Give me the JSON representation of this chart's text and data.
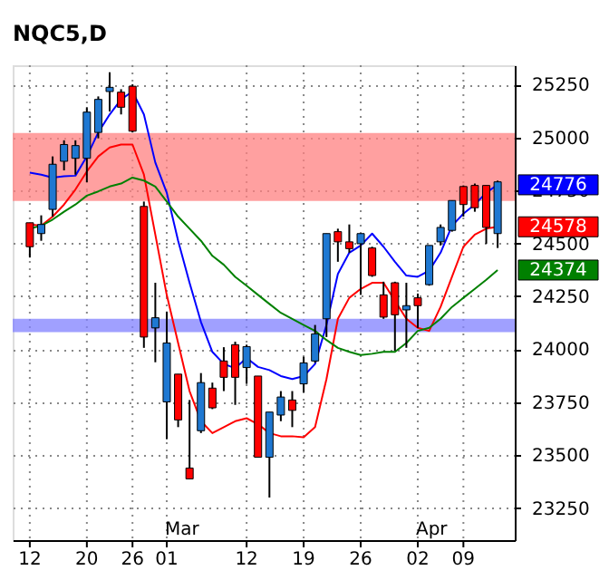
{
  "chart_data": {
    "type": "candlestick",
    "title": "NQC5,D",
    "categories": [
      "12",
      null,
      null,
      null,
      null,
      "20",
      null,
      null,
      null,
      "26",
      null,
      null,
      "01",
      null,
      null,
      null,
      null,
      null,
      null,
      "12",
      null,
      null,
      null,
      null,
      "19",
      null,
      null,
      null,
      null,
      "26",
      null,
      null,
      null,
      null,
      "02",
      null,
      null,
      null,
      "09",
      null,
      null,
      null
    ],
    "ohlc": [
      [
        24597,
        24597,
        24433,
        24484
      ],
      [
        24546,
        24632,
        24512,
        24589
      ],
      [
        24660,
        24910,
        24626,
        24873
      ],
      [
        24887,
        24986,
        24844,
        24966
      ],
      [
        24901,
        24986,
        24824,
        24961
      ],
      [
        24901,
        25142,
        24788,
        25119
      ],
      [
        25023,
        25193,
        24995,
        25179
      ],
      [
        25216,
        25307,
        25122,
        25236
      ],
      [
        25213,
        25227,
        25108,
        25142
      ],
      [
        25241,
        25250,
        25023,
        25029
      ],
      [
        24674,
        24697,
        24007,
        24058
      ],
      [
        24101,
        24314,
        23939,
        24149
      ],
      [
        23752,
        24178,
        23576,
        24030
      ],
      [
        23883,
        23883,
        23633,
        23667
      ],
      [
        23440,
        23761,
        23389,
        23389
      ],
      [
        23616,
        23888,
        23605,
        23843
      ],
      [
        23817,
        23843,
        23718,
        23724
      ],
      [
        23945,
        24010,
        23803,
        23868
      ],
      [
        24022,
        24036,
        23738,
        23868
      ],
      [
        23914,
        24022,
        23837,
        24013
      ],
      [
        23874,
        23874,
        23491,
        23491
      ],
      [
        23491,
        23704,
        23301,
        23704
      ],
      [
        23690,
        23803,
        23661,
        23775
      ],
      [
        23761,
        23803,
        23633,
        23712
      ],
      [
        23837,
        23965,
        23797,
        23936
      ],
      [
        23945,
        24115,
        23936,
        24073
      ],
      [
        24144,
        24546,
        24058,
        24546
      ],
      [
        24555,
        24569,
        24413,
        24507
      ],
      [
        24507,
        24589,
        24456,
        24475
      ],
      [
        24498,
        24546,
        24257,
        24546
      ],
      [
        24478,
        24484,
        24342,
        24348
      ],
      [
        24257,
        24319,
        24144,
        24152
      ],
      [
        24314,
        24319,
        23993,
        24163
      ],
      [
        24186,
        24314,
        24007,
        24206
      ],
      [
        24243,
        24263,
        24101,
        24206
      ],
      [
        24305,
        24490,
        24300,
        24490
      ],
      [
        24507,
        24589,
        24490,
        24575
      ],
      [
        24561,
        24702,
        24555,
        24702
      ],
      [
        24768,
        24773,
        24626,
        24683
      ],
      [
        24773,
        24782,
        24649,
        24668
      ],
      [
        24773,
        24773,
        24498,
        24575
      ],
      [
        24546,
        24796,
        24478,
        24790
      ]
    ],
    "colors": [
      "#ff0000",
      "#1e78d2",
      "#1e78d2",
      "#1e78d2",
      "#1e78d2",
      "#1e78d2",
      "#1e78d2",
      "#1e78d2",
      "#ff0000",
      "#ff0000",
      "#ff0000",
      "#1e78d2",
      "#1e78d2",
      "#ff0000",
      "#ff0000",
      "#1e78d2",
      "#ff0000",
      "#ff0000",
      "#ff0000",
      "#1e78d2",
      "#ff0000",
      "#1e78d2",
      "#1e78d2",
      "#ff0000",
      "#1e78d2",
      "#1e78d2",
      "#1e78d2",
      "#ff0000",
      "#ff0000",
      "#1e78d2",
      "#ff0000",
      "#ff0000",
      "#ff0000",
      "#1e78d2",
      "#ff0000",
      "#1e78d2",
      "#1e78d2",
      "#1e78d2",
      "#ff0000",
      "#ff0000",
      "#ff0000",
      "#1e78d2"
    ],
    "series": [
      {
        "type": "line",
        "color": "#0000ff",
        "values": [
          24833,
          24824,
          24810,
          24816,
          24819,
          24910,
          25023,
          25108,
          25179,
          25216,
          25108,
          24881,
          24739,
          24512,
          24314,
          24129,
          23988,
          23931,
          23911,
          23959,
          23917,
          23902,
          23874,
          23860,
          23874,
          23931,
          24115,
          24356,
          24456,
          24490,
          24546,
          24484,
          24413,
          24348,
          24342,
          24371,
          24456,
          24583,
          24640,
          24683,
          24739,
          24776
        ],
        "value_labels": [
          null,
          null,
          null,
          null,
          null,
          null,
          null,
          null,
          null,
          null,
          null,
          null,
          null,
          null,
          null,
          null,
          null,
          null,
          null,
          null,
          null,
          null,
          null,
          null,
          null,
          null,
          null,
          null,
          null,
          null,
          null,
          null,
          null,
          null,
          null,
          null,
          null,
          null,
          null,
          null,
          null,
          "24776"
        ]
      },
      {
        "type": "line",
        "color": "#ff0000",
        "values": [
          24589,
          24583,
          24626,
          24683,
          24754,
          24839,
          24910,
          24952,
          24966,
          24966,
          24824,
          24541,
          24257,
          24030,
          23803,
          23661,
          23605,
          23633,
          23661,
          23675,
          23647,
          23605,
          23590,
          23590,
          23585,
          23633,
          23860,
          24144,
          24243,
          24285,
          24314,
          24314,
          24229,
          24144,
          24101,
          24087,
          24200,
          24342,
          24484,
          24541,
          24569,
          24578
        ],
        "value_labels": [
          null,
          null,
          null,
          null,
          null,
          null,
          null,
          null,
          null,
          null,
          null,
          null,
          null,
          null,
          null,
          null,
          null,
          null,
          null,
          null,
          null,
          null,
          null,
          null,
          null,
          null,
          null,
          null,
          null,
          null,
          null,
          null,
          null,
          null,
          null,
          null,
          null,
          null,
          null,
          null,
          null,
          "24578"
        ]
      },
      {
        "type": "line",
        "color": "#008000",
        "values": [
          24569,
          24583,
          24612,
          24649,
          24683,
          24725,
          24745,
          24768,
          24782,
          24810,
          24796,
          24768,
          24697,
          24626,
          24569,
          24512,
          24441,
          24399,
          24342,
          24300,
          24257,
          24214,
          24172,
          24144,
          24115,
          24087,
          24044,
          24007,
          23988,
          23973,
          23979,
          23988,
          23988,
          24030,
          24087,
          24101,
          24144,
          24200,
          24243,
          24285,
          24328,
          24374
        ],
        "value_labels": [
          null,
          null,
          null,
          null,
          null,
          null,
          null,
          null,
          null,
          null,
          null,
          null,
          null,
          null,
          null,
          null,
          null,
          null,
          null,
          null,
          null,
          null,
          null,
          null,
          null,
          null,
          null,
          null,
          null,
          null,
          null,
          null,
          null,
          null,
          null,
          null,
          null,
          null,
          null,
          null,
          null,
          "24374"
        ]
      }
    ],
    "bands": [
      {
        "axis": "y",
        "from": 24700,
        "to": 25020,
        "color": "#ff8080"
      },
      {
        "axis": "y",
        "from": 24081,
        "to": 24144,
        "color": "#8080ff"
      }
    ],
    "annotations": [
      "Mar",
      "Apr"
    ],
    "ylim": [
      23100,
      25340
    ],
    "yticks": [
      23250,
      23500,
      23750,
      24000,
      24250,
      24500,
      24750,
      25000,
      25250
    ],
    "grid": true
  }
}
